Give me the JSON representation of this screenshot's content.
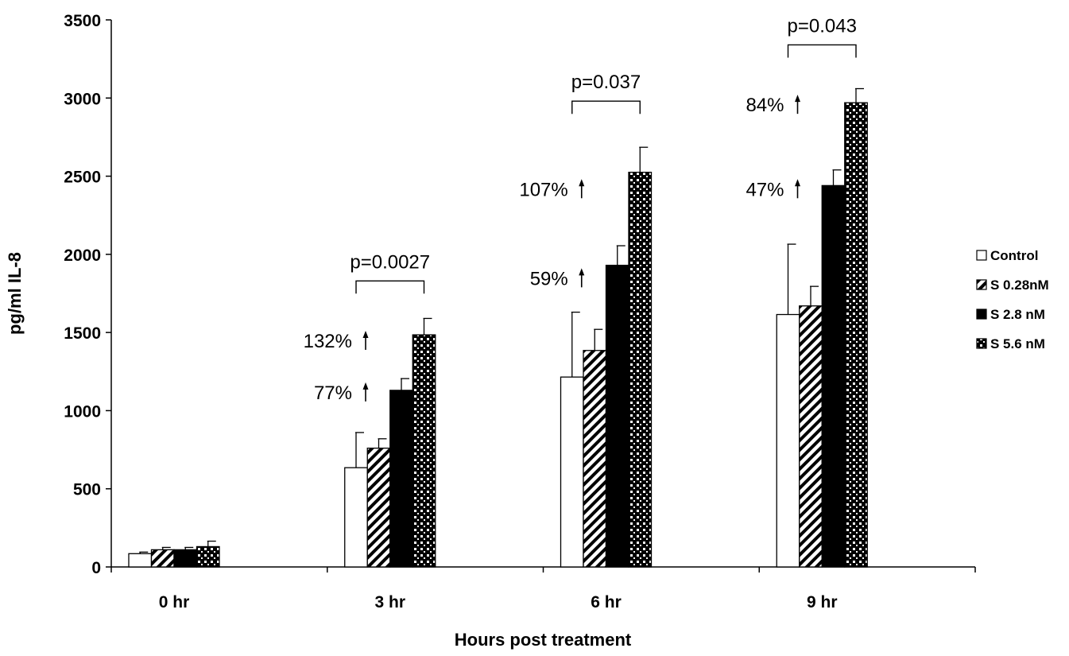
{
  "chart_data": {
    "type": "bar",
    "title": "",
    "xlabel": "Hours post treatment",
    "ylabel": "pg/ml IL-8",
    "ylim": [
      0,
      3500
    ],
    "yticks": [
      0,
      500,
      1000,
      1500,
      2000,
      2500,
      3000,
      3500
    ],
    "categories": [
      "0 hr",
      "3 hr",
      "6 hr",
      "9 hr"
    ],
    "legend_position": "right",
    "series": [
      {
        "name": "Control",
        "pattern": "plain",
        "values": [
          85,
          635,
          1215,
          1615
        ],
        "errors": [
          10,
          225,
          415,
          450
        ]
      },
      {
        "name": "S 0.28nM",
        "pattern": "stripes",
        "values": [
          110,
          760,
          1385,
          1670
        ],
        "errors": [
          15,
          60,
          135,
          125
        ]
      },
      {
        "name": "S 2.8 nM",
        "pattern": "solid",
        "values": [
          110,
          1130,
          1930,
          2440
        ],
        "errors": [
          15,
          75,
          125,
          100
        ]
      },
      {
        "name": "S 5.6 nM",
        "pattern": "dots",
        "values": [
          130,
          1485,
          2525,
          2970
        ],
        "errors": [
          35,
          105,
          160,
          90
        ]
      }
    ],
    "annotations": {
      "percents": [
        {
          "category": 1,
          "text": "77%",
          "y": 1120
        },
        {
          "category": 1,
          "text": "132%",
          "y": 1450
        },
        {
          "category": 2,
          "text": "59%",
          "y": 1850
        },
        {
          "category": 2,
          "text": "107%",
          "y": 2420
        },
        {
          "category": 3,
          "text": "47%",
          "y": 2420
        },
        {
          "category": 3,
          "text": "84%",
          "y": 2960
        }
      ],
      "pvalues": [
        {
          "category": 1,
          "text": "p=0.0027",
          "y": 1830
        },
        {
          "category": 2,
          "text": "p=0.037",
          "y": 2980
        },
        {
          "category": 3,
          "text": "p=0.043",
          "y": 3340
        }
      ]
    }
  }
}
